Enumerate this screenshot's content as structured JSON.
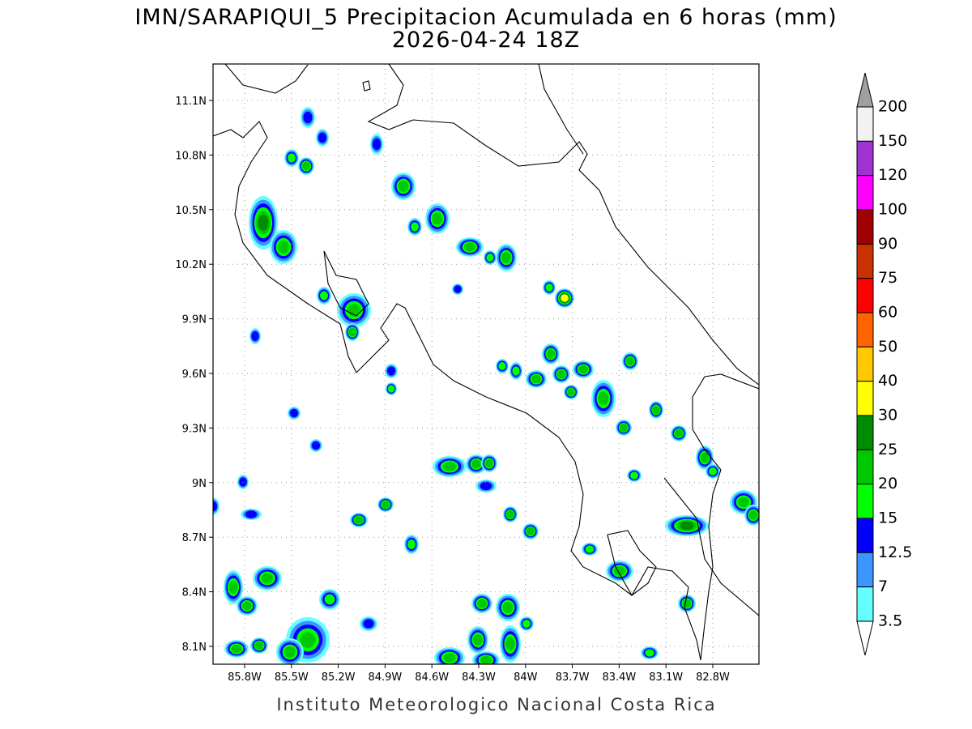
{
  "header": {
    "title": "IMN/SARAPIQUI_5 Precipitacion Acumulada en 6 horas (mm)",
    "subtitle": "2026-04-24 18Z"
  },
  "map": {
    "lat_labels": [
      "11.1N",
      "10.8N",
      "10.5N",
      "10.2N",
      "9.9N",
      "9.6N",
      "9.3N",
      "9N",
      "8.7N",
      "8.4N",
      "8.1N"
    ],
    "lon_labels": [
      "85.8W",
      "85.5W",
      "85.2W",
      "84.9W",
      "84.6W",
      "84.3W",
      "84W",
      "83.7W",
      "83.4W",
      "83.1W",
      "82.8W"
    ]
  },
  "legend": {
    "labels": [
      "200",
      "150",
      "120",
      "100",
      "90",
      "75",
      "60",
      "50",
      "40",
      "30",
      "25",
      "20",
      "15",
      "12.5",
      "7",
      "3.5"
    ],
    "colors": [
      "#f2f2f2",
      "#a032d2",
      "#ff00ff",
      "#a00000",
      "#c83200",
      "#ff0000",
      "#ff6400",
      "#ffc800",
      "#ffff00",
      "#008c00",
      "#00c800",
      "#00ff00",
      "#0000ff",
      "#3c96ff",
      "#64ffff"
    ]
  },
  "footer": "Instituto Meteorologico Nacional Costa Rica"
}
